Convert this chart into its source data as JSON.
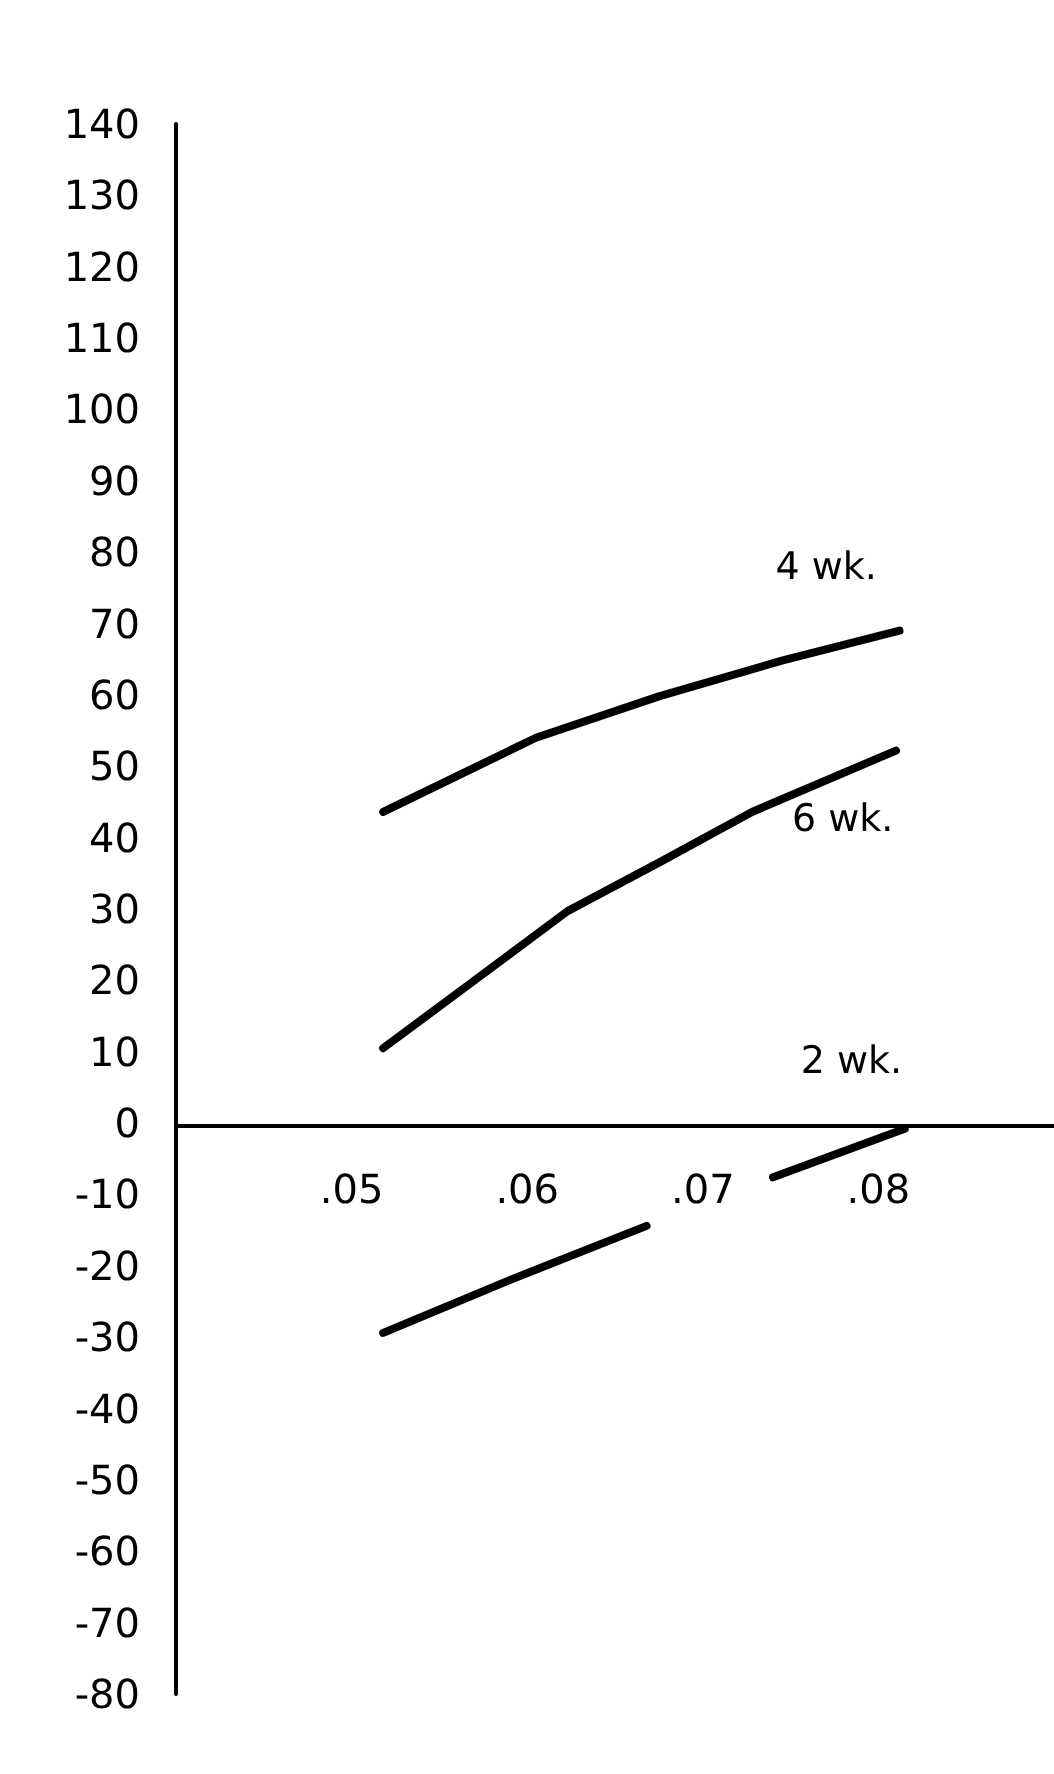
{
  "chart_data": {
    "type": "line",
    "xlim": [
      0.04,
      0.09
    ],
    "ylim": [
      -80,
      140
    ],
    "xticks": [
      {
        "value": 0.05,
        "label": ".05"
      },
      {
        "value": 0.06,
        "label": ".06"
      },
      {
        "value": 0.07,
        "label": ".07"
      },
      {
        "value": 0.08,
        "label": ".08"
      }
    ],
    "yticks": [
      -80,
      -70,
      -60,
      -50,
      -40,
      -30,
      -20,
      -10,
      0,
      10,
      20,
      30,
      40,
      50,
      60,
      70,
      80,
      90,
      100,
      110,
      120,
      130,
      140
    ],
    "series": [
      {
        "name": "4 wk.",
        "color": "#000000",
        "x": [
          0.0518,
          0.0605,
          0.0675,
          0.0745,
          0.0812
        ],
        "values": [
          43.6,
          54,
          59.8,
          64.8,
          69
        ]
      },
      {
        "name": "6 wk.",
        "color": "#000000",
        "x": [
          0.0518,
          0.057,
          0.0623,
          0.0675,
          0.0728,
          0.081
        ],
        "values": [
          10.5,
          20,
          29.7,
          36.5,
          43.6,
          52.2
        ]
      },
      {
        "name": "2 wk.",
        "color": "#000000",
        "x": [
          0.0518,
          0.059,
          0.0668,
          0.0704,
          0.074,
          0.0815
        ],
        "values": [
          -29.4,
          -22,
          -14.4,
          null,
          -7.6,
          -0.8
        ]
      }
    ],
    "legend": false,
    "marker": "none",
    "line_style": "solid"
  }
}
